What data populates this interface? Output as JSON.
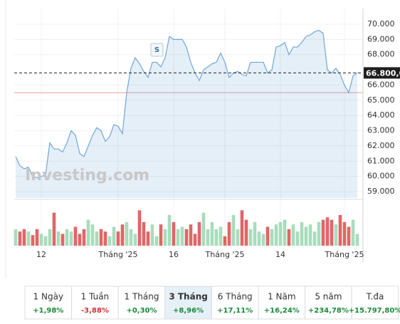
{
  "chart_data": {
    "type": "area",
    "watermark": "Investing.com",
    "categories": [
      null,
      null,
      null,
      null,
      null,
      null,
      "12",
      null,
      null,
      null,
      null,
      null,
      null,
      null,
      null,
      null,
      null,
      null,
      null,
      null,
      null,
      null,
      null,
      null,
      "Tháng '25",
      null,
      null,
      null,
      null,
      null,
      null,
      null,
      null,
      null,
      null,
      null,
      null,
      "16",
      null,
      null,
      null,
      null,
      null,
      null,
      null,
      null,
      null,
      null,
      null,
      "Tháng '25",
      null,
      null,
      null,
      null,
      null,
      null,
      null,
      null,
      null,
      null,
      null,
      null,
      "14",
      null,
      null,
      null,
      null,
      null,
      null,
      null,
      null,
      null,
      null,
      null,
      null,
      null,
      null,
      "Tháng '25",
      null,
      null,
      null
    ],
    "series": [
      {
        "color": "#6fa7d8",
        "values": [
          61300,
          60700,
          60500,
          60600,
          60000,
          59900,
          60000,
          60100,
          62200,
          61800,
          61800,
          61600,
          62200,
          63000,
          62700,
          61500,
          61300,
          62000,
          62700,
          63200,
          63000,
          62300,
          62600,
          63400,
          63300,
          62800,
          65500,
          67100,
          67800,
          67400,
          66900,
          66500,
          67500,
          67500,
          67200,
          67800,
          69200,
          69000,
          69000,
          69000,
          68500,
          67500,
          66800,
          66300,
          67000,
          67200,
          67400,
          67500,
          68100,
          67500,
          66500,
          66800,
          66900,
          66700,
          66600,
          67500,
          67500,
          67500,
          67500,
          66800,
          67000,
          68500,
          68600,
          68800,
          68000,
          68500,
          68500,
          68800,
          69200,
          69300,
          69500,
          69600,
          69400,
          67000,
          66800,
          67100,
          66700,
          66000,
          65500,
          66600,
          66800
        ]
      }
    ],
    "ylim": [
      58580,
      70890
    ],
    "yticks": [
      {
        "value": 59000,
        "label": "59.000"
      },
      {
        "value": 60000,
        "label": "60.000"
      },
      {
        "value": 61000,
        "label": "61.000"
      },
      {
        "value": 62000,
        "label": "62.000"
      },
      {
        "value": 63000,
        "label": "63.000"
      },
      {
        "value": 64000,
        "label": "64.000"
      },
      {
        "value": 65000,
        "label": "65.000"
      },
      {
        "value": 66000,
        "label": "66.000"
      },
      {
        "value": 68000,
        "label": "68.000"
      },
      {
        "value": 69000,
        "label": "69.000"
      },
      {
        "value": 70000,
        "label": "70.000"
      }
    ],
    "grid": true,
    "last_price": {
      "value": 66800,
      "label": "66.800,0"
    },
    "reference_line": {
      "value": 65500,
      "color": "#e89a9a"
    },
    "volume": {
      "values": [
        14,
        12,
        14,
        12,
        9,
        14,
        10,
        8,
        14,
        28,
        12,
        10,
        14,
        12,
        16,
        10,
        14,
        22,
        18,
        12,
        14,
        12,
        8,
        16,
        12,
        18,
        20,
        14,
        10,
        30,
        20,
        12,
        18,
        8,
        18,
        14,
        26,
        20,
        14,
        16,
        14,
        18,
        10,
        20,
        28,
        14,
        20,
        14,
        16,
        8,
        20,
        26,
        14,
        30,
        22,
        14,
        20,
        12,
        10,
        16,
        14,
        18,
        20,
        22,
        14,
        18,
        12,
        20,
        16,
        18,
        12,
        20,
        22,
        24,
        22,
        18,
        26,
        20,
        16,
        22,
        10
      ],
      "ylim": [
        0,
        32
      ],
      "up_color": "#a8dcbc",
      "down_color": "#e06666"
    }
  },
  "periods": [
    {
      "label": "1 Ngày",
      "change": "+1,98%",
      "color": "#1a8a3a"
    },
    {
      "label": "1 Tuần",
      "change": "-3,88%",
      "color": "#d63030"
    },
    {
      "label": "1 Tháng",
      "change": "+0,30%",
      "color": "#1a8a3a"
    },
    {
      "label": "3 Tháng",
      "change": "+8,96%",
      "color": "#1a8a3a",
      "active": true
    },
    {
      "label": "6 Tháng",
      "change": "+17,11%",
      "color": "#1a8a3a"
    },
    {
      "label": "1 Năm",
      "change": "+16,24%",
      "color": "#1a8a3a"
    },
    {
      "label": "5 năm",
      "change": "+234,78%",
      "color": "#1a8a3a"
    },
    {
      "label": "T.đa",
      "change": "+15.797,80%",
      "color": "#1a8a3a"
    }
  ]
}
